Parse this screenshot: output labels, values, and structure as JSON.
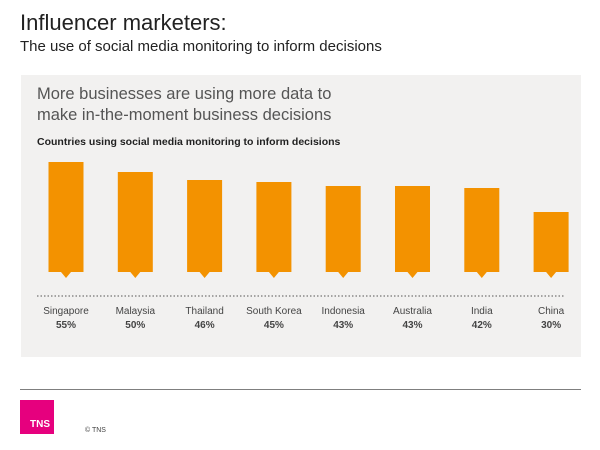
{
  "title": "Influencer marketers:",
  "subtitle": "The use of social media monitoring to inform decisions",
  "panel": {
    "headline": "More businesses are using more data to make in-the-moment business decisions",
    "caption": "Countries using social media monitoring to inform decisions"
  },
  "chart_data": {
    "type": "bar",
    "categories": [
      "Singapore",
      "Malaysia",
      "Thailand",
      "South Korea",
      "Indonesia",
      "Australia",
      "India",
      "China"
    ],
    "values": [
      55,
      50,
      46,
      45,
      43,
      43,
      42,
      30
    ],
    "value_labels": [
      "55%",
      "50%",
      "46%",
      "45%",
      "43%",
      "43%",
      "42%",
      "30%"
    ],
    "unit": "%",
    "ylim": [
      0,
      60
    ],
    "grid": false,
    "bar_color": "#f39200"
  },
  "footer": {
    "logo_text": "TNS",
    "copyright": "© TNS",
    "logo_color": "#e6007e"
  }
}
